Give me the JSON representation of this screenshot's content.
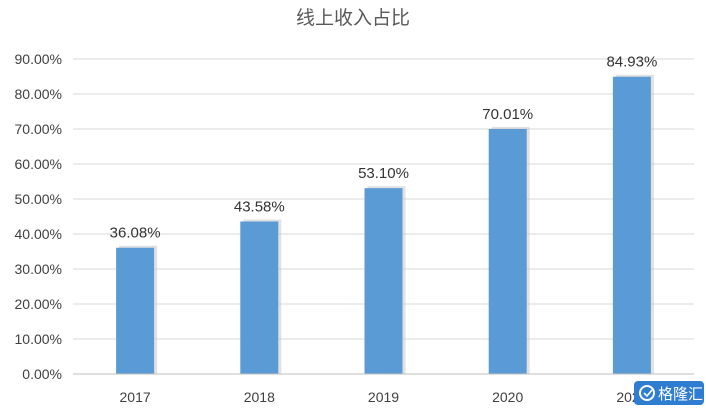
{
  "chart_data": {
    "type": "bar",
    "title": "线上收入占比",
    "categories": [
      "2017",
      "2018",
      "2019",
      "2020",
      "2021"
    ],
    "values": [
      36.08,
      43.58,
      53.1,
      70.01,
      84.93
    ],
    "data_labels": [
      "36.08%",
      "43.58%",
      "53.10%",
      "70.01%",
      "84.93%"
    ],
    "yticks": [
      "0.00%",
      "10.00%",
      "20.00%",
      "30.00%",
      "40.00%",
      "50.00%",
      "60.00%",
      "70.00%",
      "80.00%",
      "90.00%"
    ],
    "ylim": [
      0,
      90
    ],
    "grid": true,
    "legend": "none",
    "bar_color": "#5b9bd5"
  },
  "watermark": {
    "text": "格隆汇",
    "color": "#2e7dd1"
  }
}
